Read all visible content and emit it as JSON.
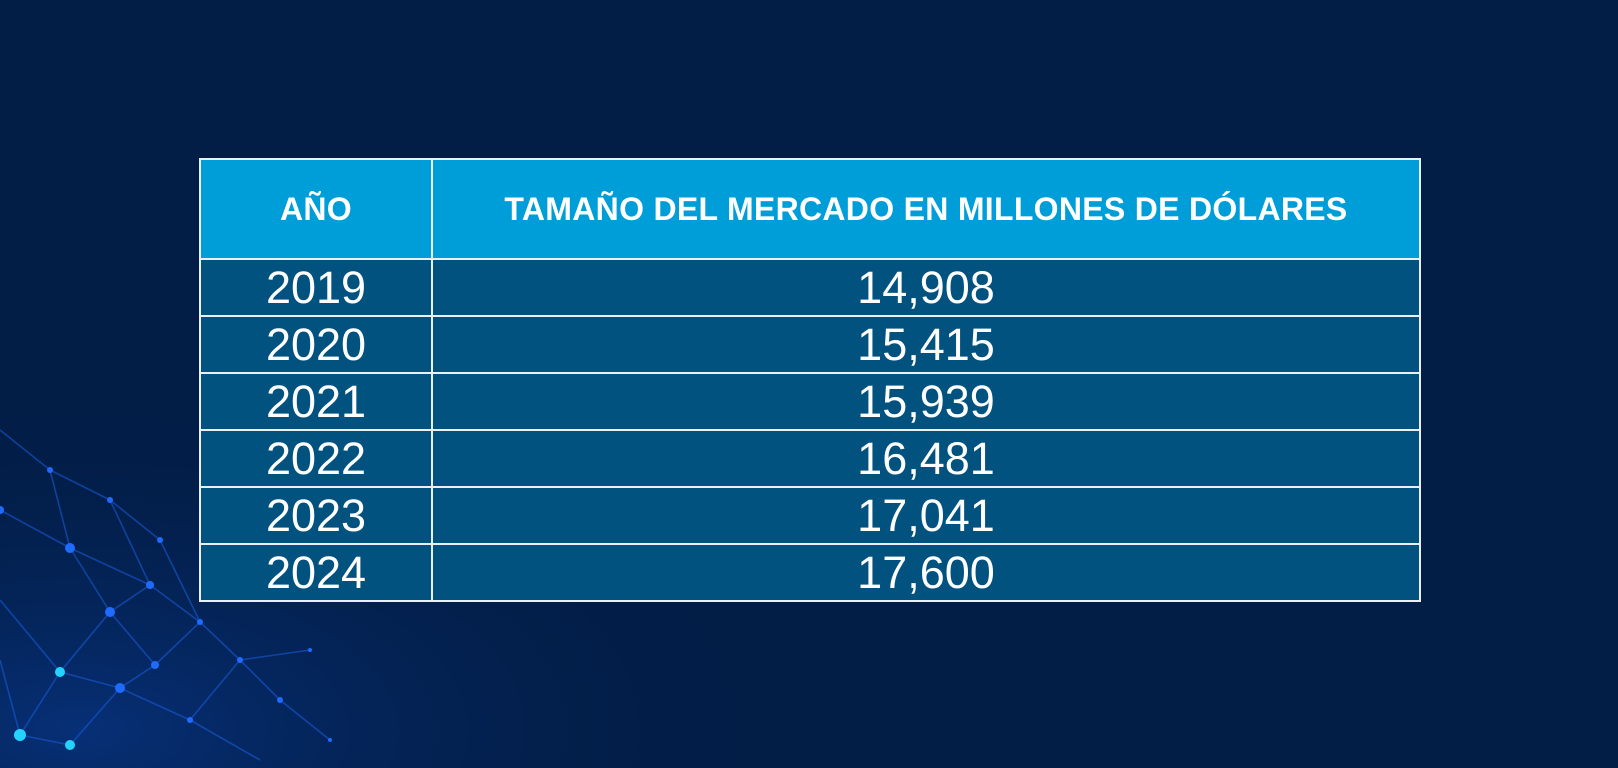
{
  "colors": {
    "background": "#021d46",
    "header_fill": "#009ed8",
    "row_fill": "#02527f",
    "grid": "#e9f1f7",
    "network_accent": "#1f6bff"
  },
  "decoration": {
    "icon": "network-mesh-graphic"
  },
  "chart_data": {
    "type": "table",
    "columns": [
      "AÑO",
      "TAMAÑO DEL MERCADO EN MILLONES DE DÓLARES"
    ],
    "rows": [
      [
        "2019",
        "14,908"
      ],
      [
        "2020",
        "15,415"
      ],
      [
        "2021",
        "15,939"
      ],
      [
        "2022",
        "16,481"
      ],
      [
        "2023",
        "17,041"
      ],
      [
        "2024",
        "17,600"
      ]
    ]
  }
}
